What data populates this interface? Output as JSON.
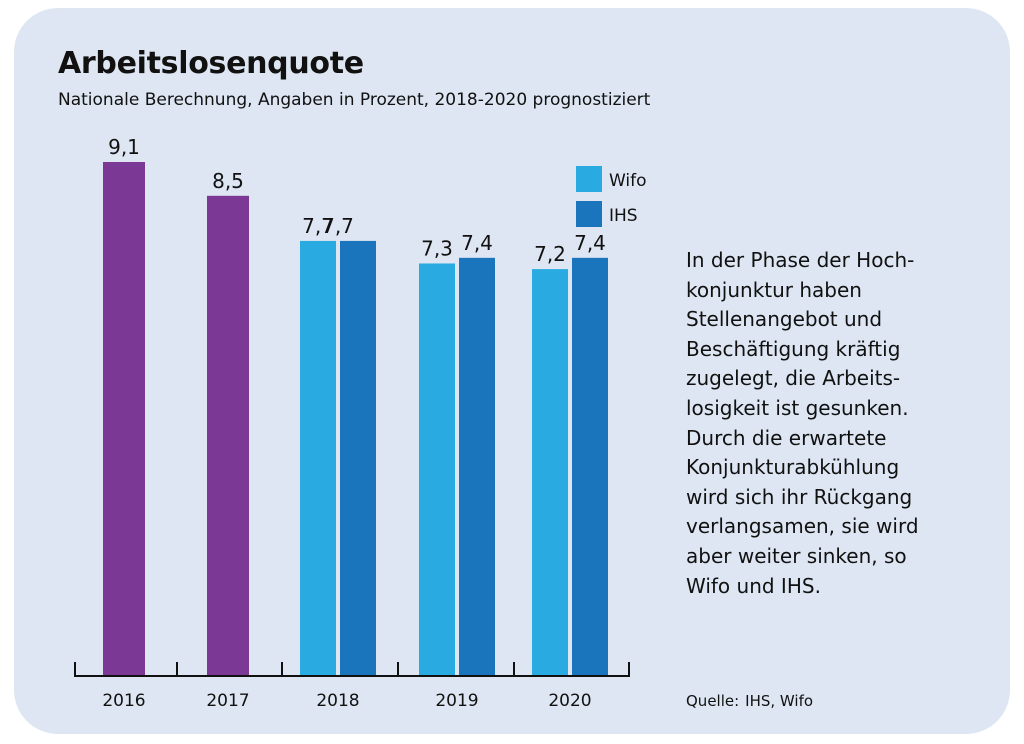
{
  "title": "Arbeitslosenquote",
  "subtitle": "Nationale Berechnung, Angaben in Prozent, 2018-2020 prognostiziert",
  "note_lines": [
    "In der Phase der Hoch-",
    "konjunktur haben",
    "Stellenangebot und",
    "Beschäftigung kräftig",
    "zugelegt, die Arbeits-",
    "losigkeit ist gesunken.",
    "Durch die erwartete",
    "Konjunkturabkühlung",
    "wird sich ihr Rückgang",
    "verlangsamen, sie wird",
    "aber weiter sinken, so",
    "Wifo und IHS."
  ],
  "source": {
    "label": "Quelle:",
    "text": "IHS, Wifo"
  },
  "colors": {
    "background": "#dde6f2",
    "actual": "#7b3995",
    "wifo": "#29abe2",
    "ihs": "#1b75bc",
    "text": "#111111"
  },
  "chart_data": {
    "type": "bar",
    "title": "Arbeitslosenquote",
    "subtitle": "Nationale Berechnung, Angaben in Prozent, 2018-2020 prognostiziert",
    "categories": [
      "2016",
      "2017",
      "2018",
      "2019",
      "2020"
    ],
    "series": [
      {
        "values": [
          9.1,
          8.5,
          null,
          null,
          null
        ],
        "value_labels": [
          "9,1",
          "8,5",
          null,
          null,
          null
        ],
        "color": "#7b3995"
      },
      {
        "name": "Wifo",
        "values": [
          null,
          null,
          7.7,
          7.3,
          7.2
        ],
        "value_labels": [
          null,
          null,
          "7,7",
          "7,3",
          "7,2"
        ],
        "color": "#29abe2"
      },
      {
        "name": "IHS",
        "values": [
          null,
          null,
          7.7,
          7.4,
          7.4
        ],
        "value_labels": [
          null,
          null,
          "",
          "7,4",
          "7,4"
        ],
        "color": "#1b75bc"
      }
    ],
    "group_labels": {
      "2018": "7,7"
    },
    "ylim": [
      0,
      9.1
    ],
    "xlabel": "",
    "ylabel": "",
    "grid": false,
    "legend": {
      "position": "top-right",
      "entries": [
        "Wifo",
        "IHS"
      ]
    }
  }
}
